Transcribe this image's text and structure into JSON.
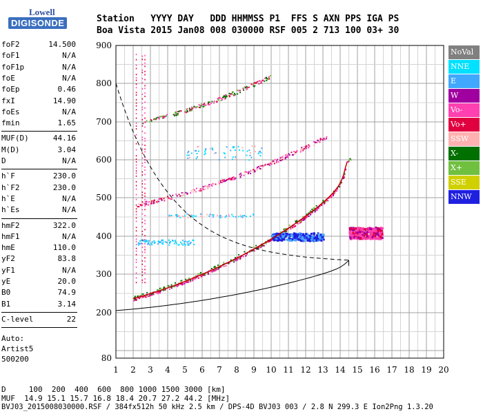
{
  "logo": {
    "line1": "Lowell",
    "line2": "DIGISONDE"
  },
  "header": {
    "line1": "Station   YYYY DAY   DDD HHMMSS P1  FFS S AXN PPS IGA PS",
    "line2": "Boa Vista 2015 Jan08 008 030000 RSF 005 2 713 100 03+ 30"
  },
  "params": {
    "group1": [
      {
        "k": "foF2",
        "v": "14.500"
      },
      {
        "k": "foF1",
        "v": "N/A"
      },
      {
        "k": "foF1p",
        "v": "N/A"
      },
      {
        "k": "foE",
        "v": "N/A"
      },
      {
        "k": "foEp",
        "v": "0.46"
      },
      {
        "k": "fxI",
        "v": "14.90"
      },
      {
        "k": "foEs",
        "v": "N/A"
      },
      {
        "k": "fmin",
        "v": "1.65"
      }
    ],
    "group2": [
      {
        "k": "MUF(D)",
        "v": "44.16"
      },
      {
        "k": "M(D)",
        "v": "3.04"
      },
      {
        "k": "D",
        "v": "N/A"
      }
    ],
    "group3": [
      {
        "k": "h`F",
        "v": "230.0"
      },
      {
        "k": "h`F2",
        "v": "230.0"
      },
      {
        "k": "h`E",
        "v": "N/A"
      },
      {
        "k": "h`Es",
        "v": "N/A"
      }
    ],
    "group4": [
      {
        "k": "hmF2",
        "v": "322.0"
      },
      {
        "k": "hmF1",
        "v": "N/A"
      },
      {
        "k": "hmE",
        "v": "110.0"
      },
      {
        "k": "yF2",
        "v": "83.8"
      },
      {
        "k": "yF1",
        "v": "N/A"
      },
      {
        "k": "yE",
        "v": "20.0"
      },
      {
        "k": "B0",
        "v": "74.9"
      },
      {
        "k": "B1",
        "v": "3.14"
      }
    ],
    "group5": [
      {
        "k": "C-level",
        "v": "22"
      }
    ],
    "auto": [
      "Auto:",
      "Artist5",
      "500200"
    ]
  },
  "legend": [
    {
      "label": "NoVal",
      "color": "#808080"
    },
    {
      "label": "NNE",
      "color": "#00e0ff"
    },
    {
      "label": "E",
      "color": "#40a8ff"
    },
    {
      "label": "W",
      "color": "#a000a0"
    },
    {
      "label": "Vo-",
      "color": "#ff40b0"
    },
    {
      "label": "Vo+",
      "color": "#e00040"
    },
    {
      "label": "SSW",
      "color": "#ffb0b0"
    },
    {
      "label": "X-",
      "color": "#007000"
    },
    {
      "label": "X+",
      "color": "#70c040"
    },
    {
      "label": "SSE",
      "color": "#d0d000"
    },
    {
      "label": "NNW",
      "color": "#2020e0"
    }
  ],
  "chart_data": {
    "type": "scatter",
    "xlim": [
      1,
      20
    ],
    "ylim": [
      80,
      900
    ],
    "x_ticks": [
      1,
      2,
      3,
      4,
      5,
      6,
      7,
      8,
      9,
      10,
      11,
      12,
      13,
      14,
      15,
      16,
      17,
      18,
      19,
      20
    ],
    "y_ticks": [
      80,
      200,
      300,
      400,
      500,
      600,
      700,
      800,
      900
    ],
    "grid": true
  },
  "footer": {
    "d_row": "D     100  200  400  600  800 1000 1500 3000 [km]",
    "muf_row": "MUF  14.9 15.1 15.7 16.8 18.4 20.7 27.2 44.2 [MHz]",
    "file_row": "BVJ03_2015008030000.RSF / 384fx512h 50 kHz 2.5 km / DPS-4D BVJ03 003 / 2.8 N 299.3 E Ion2Png 1.3.20"
  }
}
